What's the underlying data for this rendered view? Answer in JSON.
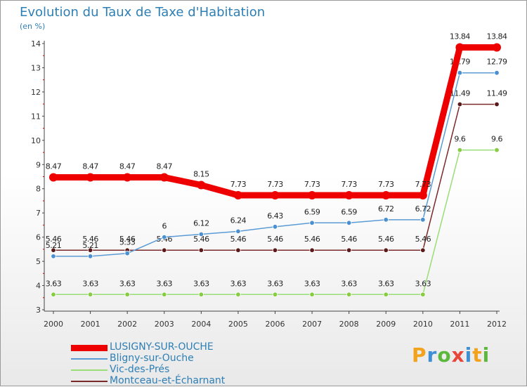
{
  "title": "Evolution du Taux de Taxe d'Habitation",
  "subtitle": "(en %)",
  "logo": {
    "text": "Proxiti",
    "letters": [
      {
        "ch": "P",
        "color": "#f2a21b"
      },
      {
        "ch": "r",
        "color": "#3e8fd6"
      },
      {
        "ch": "o",
        "color": "#5bb83c"
      },
      {
        "ch": "x",
        "color": "#e8463a"
      },
      {
        "ch": "i",
        "color": "#3e8fd6"
      },
      {
        "ch": "t",
        "color": "#f2a21b"
      },
      {
        "ch": "i",
        "color": "#5bb83c"
      }
    ]
  },
  "chart_data": {
    "type": "line",
    "title": "Evolution du Taux de Taxe d'Habitation",
    "ylabel": "(en %)",
    "x": [
      "2000",
      "2001",
      "2002",
      "2003",
      "2004",
      "2005",
      "2006",
      "2007",
      "2008",
      "2009",
      "2010",
      "2011",
      "2012"
    ],
    "ylim": [
      3,
      14
    ],
    "yticks": [
      3,
      4,
      5,
      6,
      7,
      8,
      9,
      10,
      11,
      12,
      13,
      14
    ],
    "grid": false,
    "series": [
      {
        "name": "LUSIGNY-SUR-OUCHE",
        "color": "#ee0000",
        "width": 9,
        "values": [
          8.47,
          8.47,
          8.47,
          8.47,
          8.15,
          7.73,
          7.73,
          7.73,
          7.73,
          7.73,
          7.73,
          13.84,
          13.84
        ],
        "labels": [
          "8.47",
          "8.47",
          "8.47",
          "8.47",
          "8.15",
          "7.73",
          "7.73",
          "7.73",
          "7.73",
          "7.73",
          "7.73",
          "13.84",
          "13.84"
        ]
      },
      {
        "name": "Bligny-sur-Ouche",
        "color": "#5b9bd5",
        "marker": "#4a90d0",
        "width": 1.5,
        "values": [
          5.21,
          5.21,
          5.33,
          6,
          6.12,
          6.24,
          6.43,
          6.59,
          6.59,
          6.72,
          6.72,
          12.79,
          12.79
        ],
        "labels": [
          "5.21",
          "5.21",
          "5.33",
          "6",
          "6.12",
          "6.24",
          "6.43",
          "6.59",
          "6.59",
          "6.72",
          "6.72",
          "12.79",
          "12.79"
        ]
      },
      {
        "name": "Vic-des-Prés",
        "color": "#99dd77",
        "marker": "#88cc44",
        "width": 1.5,
        "values": [
          3.63,
          3.63,
          3.63,
          3.63,
          3.63,
          3.63,
          3.63,
          3.63,
          3.63,
          3.63,
          3.63,
          9.6,
          9.6
        ],
        "labels": [
          "3.63",
          "3.63",
          "3.63",
          "3.63",
          "3.63",
          "3.63",
          "3.63",
          "3.63",
          "3.63",
          "3.63",
          "3.63",
          "9.6",
          "9.6"
        ]
      },
      {
        "name": "Montceau-et-Écharnant",
        "color": "#7a2a2a",
        "marker": "#5a1a1a",
        "width": 1.5,
        "values": [
          5.46,
          5.46,
          5.46,
          5.46,
          5.46,
          5.46,
          5.46,
          5.46,
          5.46,
          5.46,
          5.46,
          11.49,
          11.49
        ],
        "labels": [
          "5.46",
          "5.46",
          "5.46",
          "5.46",
          "5.46",
          "5.46",
          "5.46",
          "5.46",
          "5.46",
          "5.46",
          "5.46",
          "11.49",
          "11.49"
        ]
      }
    ],
    "legend": "bottom-left"
  }
}
